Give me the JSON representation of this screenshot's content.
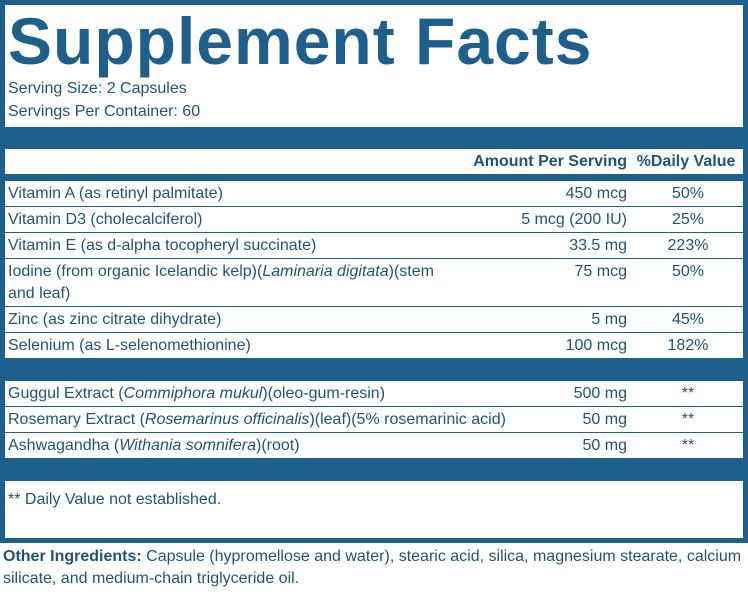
{
  "title": "Supplement Facts",
  "serving_size": "Serving Size: 2 Capsules",
  "servings_per_container": "Servings Per Container: 60",
  "table": {
    "header": {
      "amount": "Amount Per Serving",
      "daily_value": "%Daily Value"
    },
    "sections": [
      {
        "rows": [
          {
            "name": [
              {
                "text": "Vitamin A (as retinyl palmitate)"
              }
            ],
            "amount": "450 mcg",
            "daily_value": "50%"
          },
          {
            "name": [
              {
                "text": "Vitamin D3 (cholecalciferol)"
              }
            ],
            "amount": "5 mcg (200 IU)",
            "daily_value": "25%"
          },
          {
            "name": [
              {
                "text": "Vitamin E (as d-alpha tocopheryl succinate)"
              }
            ],
            "amount": "33.5 mg",
            "daily_value": "223%"
          },
          {
            "name": [
              {
                "text": "Iodine (from organic Icelandic kelp)("
              },
              {
                "text": "Laminaria digitata",
                "italic": true
              },
              {
                "text": ")"
              },
              {
                "text": "(stem and leaf)"
              }
            ],
            "amount": "75 mcg",
            "daily_value": "50%"
          },
          {
            "name": [
              {
                "text": "Zinc (as zinc citrate dihydrate)"
              }
            ],
            "amount": "5 mg",
            "daily_value": "45%"
          },
          {
            "name": [
              {
                "text": "Selenium (as L-selenomethionine)"
              }
            ],
            "amount": "100 mcg",
            "daily_value": "182%"
          }
        ]
      },
      {
        "rows": [
          {
            "name": [
              {
                "text": "Guggul Extract ("
              },
              {
                "text": "Commiphora mukul",
                "italic": true
              },
              {
                "text": ")(oleo-gum-resin)"
              }
            ],
            "amount": "500 mg",
            "daily_value": "**"
          },
          {
            "name": [
              {
                "text": "Rosemary Extract ("
              },
              {
                "text": "Rosemarinus officinalis",
                "italic": true
              },
              {
                "text": ")(leaf)(5% rosemarinic acid)"
              }
            ],
            "amount": "50 mg",
            "daily_value": "**"
          },
          {
            "name": [
              {
                "text": "Ashwagandha ("
              },
              {
                "text": "Withania somnifera",
                "italic": true
              },
              {
                "text": ")(root)"
              }
            ],
            "amount": "50 mg",
            "daily_value": "**"
          }
        ]
      }
    ]
  },
  "footnote": "** Daily Value not established.",
  "other_ingredients": {
    "label": "Other Ingredients:",
    "text": "Capsule (hypromellose and water), stearic acid, silica, magnesium stearate, calcium silicate, and medium-chain triglyceride oil."
  }
}
